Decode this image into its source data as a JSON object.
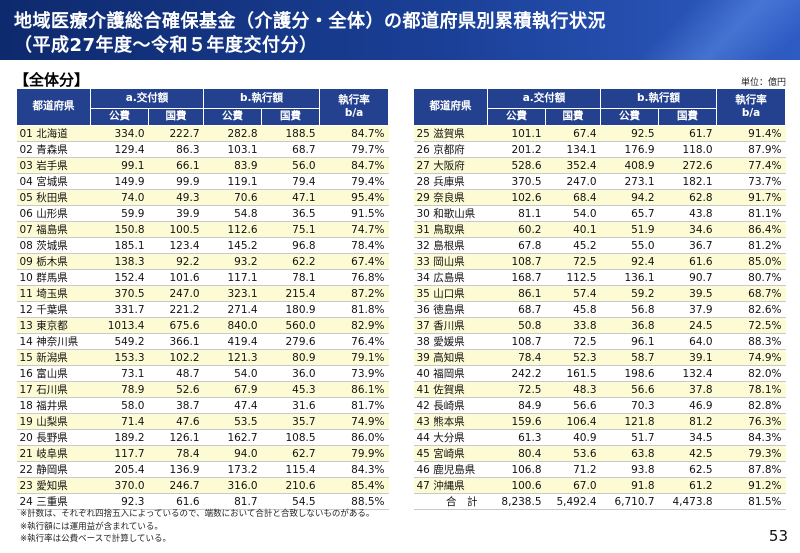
{
  "title": {
    "line1": "地域医療介護総合確保基金（介護分・全体）の都道府県別累積執行状況",
    "line2": "（平成27年度～令和５年度交付分）"
  },
  "section_label": "【全体分】",
  "unit_label": "単位：億円",
  "table_headers": {
    "prefecture": "都道府県",
    "grant": "a.交付額",
    "executed": "b.執行額",
    "rate_line1": "執行率",
    "rate_line2": "b/a",
    "public": "公費",
    "national": "国費"
  },
  "left_rows": [
    [
      "01 北海道",
      "334.0",
      "222.7",
      "282.8",
      "188.5",
      "84.7%"
    ],
    [
      "02 青森県",
      "129.4",
      "86.3",
      "103.1",
      "68.7",
      "79.7%"
    ],
    [
      "03 岩手県",
      "99.1",
      "66.1",
      "83.9",
      "56.0",
      "84.7%"
    ],
    [
      "04 宮城県",
      "149.9",
      "99.9",
      "119.1",
      "79.4",
      "79.4%"
    ],
    [
      "05 秋田県",
      "74.0",
      "49.3",
      "70.6",
      "47.1",
      "95.4%"
    ],
    [
      "06 山形県",
      "59.9",
      "39.9",
      "54.8",
      "36.5",
      "91.5%"
    ],
    [
      "07 福島県",
      "150.8",
      "100.5",
      "112.6",
      "75.1",
      "74.7%"
    ],
    [
      "08 茨城県",
      "185.1",
      "123.4",
      "145.2",
      "96.8",
      "78.4%"
    ],
    [
      "09 栃木県",
      "138.3",
      "92.2",
      "93.2",
      "62.2",
      "67.4%"
    ],
    [
      "10 群馬県",
      "152.4",
      "101.6",
      "117.1",
      "78.1",
      "76.8%"
    ],
    [
      "11 埼玉県",
      "370.5",
      "247.0",
      "323.1",
      "215.4",
      "87.2%"
    ],
    [
      "12 千葉県",
      "331.7",
      "221.2",
      "271.4",
      "180.9",
      "81.8%"
    ],
    [
      "13 東京都",
      "1013.4",
      "675.6",
      "840.0",
      "560.0",
      "82.9%"
    ],
    [
      "14 神奈川県",
      "549.2",
      "366.1",
      "419.4",
      "279.6",
      "76.4%"
    ],
    [
      "15 新潟県",
      "153.3",
      "102.2",
      "121.3",
      "80.9",
      "79.1%"
    ],
    [
      "16 富山県",
      "73.1",
      "48.7",
      "54.0",
      "36.0",
      "73.9%"
    ],
    [
      "17 石川県",
      "78.9",
      "52.6",
      "67.9",
      "45.3",
      "86.1%"
    ],
    [
      "18 福井県",
      "58.0",
      "38.7",
      "47.4",
      "31.6",
      "81.7%"
    ],
    [
      "19 山梨県",
      "71.4",
      "47.6",
      "53.5",
      "35.7",
      "74.9%"
    ],
    [
      "20 長野県",
      "189.2",
      "126.1",
      "162.7",
      "108.5",
      "86.0%"
    ],
    [
      "21 岐阜県",
      "117.7",
      "78.4",
      "94.0",
      "62.7",
      "79.9%"
    ],
    [
      "22 静岡県",
      "205.4",
      "136.9",
      "173.2",
      "115.4",
      "84.3%"
    ],
    [
      "23 愛知県",
      "370.0",
      "246.7",
      "316.0",
      "210.6",
      "85.4%"
    ],
    [
      "24 三重県",
      "92.3",
      "61.6",
      "81.7",
      "54.5",
      "88.5%"
    ]
  ],
  "right_rows": [
    [
      "25 滋賀県",
      "101.1",
      "67.4",
      "92.5",
      "61.7",
      "91.4%"
    ],
    [
      "26 京都府",
      "201.2",
      "134.1",
      "176.9",
      "118.0",
      "87.9%"
    ],
    [
      "27 大阪府",
      "528.6",
      "352.4",
      "408.9",
      "272.6",
      "77.4%"
    ],
    [
      "28 兵庫県",
      "370.5",
      "247.0",
      "273.1",
      "182.1",
      "73.7%"
    ],
    [
      "29 奈良県",
      "102.6",
      "68.4",
      "94.2",
      "62.8",
      "91.7%"
    ],
    [
      "30 和歌山県",
      "81.1",
      "54.0",
      "65.7",
      "43.8",
      "81.1%"
    ],
    [
      "31 鳥取県",
      "60.2",
      "40.1",
      "51.9",
      "34.6",
      "86.4%"
    ],
    [
      "32 島根県",
      "67.8",
      "45.2",
      "55.0",
      "36.7",
      "81.2%"
    ],
    [
      "33 岡山県",
      "108.7",
      "72.5",
      "92.4",
      "61.6",
      "85.0%"
    ],
    [
      "34 広島県",
      "168.7",
      "112.5",
      "136.1",
      "90.7",
      "80.7%"
    ],
    [
      "35 山口県",
      "86.1",
      "57.4",
      "59.2",
      "39.5",
      "68.7%"
    ],
    [
      "36 徳島県",
      "68.7",
      "45.8",
      "56.8",
      "37.9",
      "82.6%"
    ],
    [
      "37 香川県",
      "50.8",
      "33.8",
      "36.8",
      "24.5",
      "72.5%"
    ],
    [
      "38 愛媛県",
      "108.7",
      "72.5",
      "96.1",
      "64.0",
      "88.3%"
    ],
    [
      "39 高知県",
      "78.4",
      "52.3",
      "58.7",
      "39.1",
      "74.9%"
    ],
    [
      "40 福岡県",
      "242.2",
      "161.5",
      "198.6",
      "132.4",
      "82.0%"
    ],
    [
      "41 佐賀県",
      "72.5",
      "48.3",
      "56.6",
      "37.8",
      "78.1%"
    ],
    [
      "42 長崎県",
      "84.9",
      "56.6",
      "70.3",
      "46.9",
      "82.8%"
    ],
    [
      "43 熊本県",
      "159.6",
      "106.4",
      "121.8",
      "81.2",
      "76.3%"
    ],
    [
      "44 大分県",
      "61.3",
      "40.9",
      "51.7",
      "34.5",
      "84.3%"
    ],
    [
      "45 宮崎県",
      "80.4",
      "53.6",
      "63.8",
      "42.5",
      "79.3%"
    ],
    [
      "46 鹿児島県",
      "106.8",
      "71.2",
      "93.8",
      "62.5",
      "87.8%"
    ],
    [
      "47 沖縄県",
      "100.6",
      "67.0",
      "91.8",
      "61.2",
      "91.2%"
    ]
  ],
  "total_row": [
    "合　計",
    "8,238.5",
    "5,492.4",
    "6,710.7",
    "4,473.8",
    "81.5%"
  ],
  "notes": [
    "※計数は、それぞれ四捨五入によっているので、端数において合計と合致しないものがある。",
    "※執行額には運用益が含まれている。",
    "※執行率は公費ベースで計算している。"
  ],
  "page_number": "53"
}
